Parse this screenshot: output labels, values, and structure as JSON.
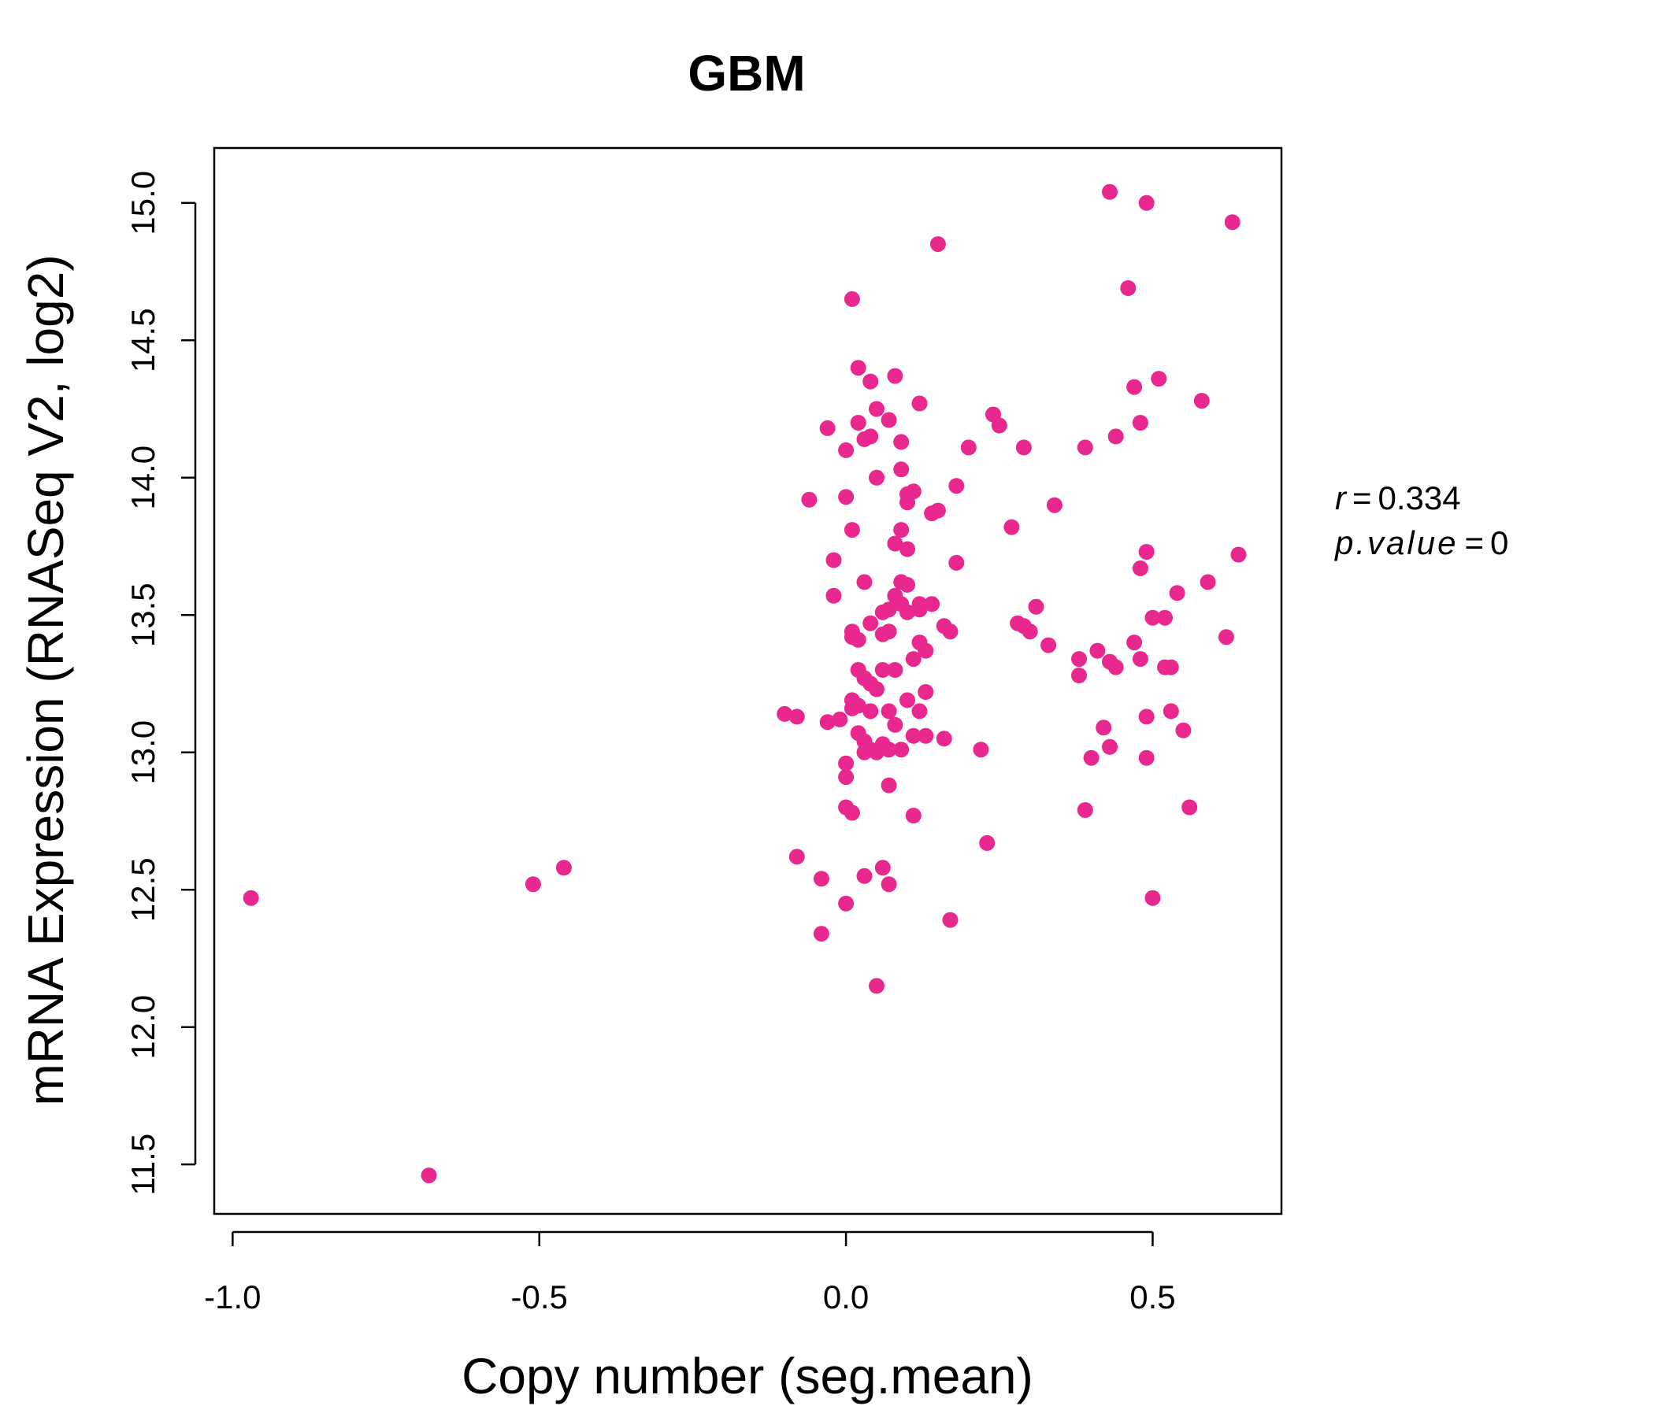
{
  "chart_data": {
    "type": "scatter",
    "title": "GBM",
    "title_color": "#E8288E",
    "point_color": "#E8288E",
    "xlabel": "Copy number (seg.mean)",
    "ylabel": "mRNA Expression (RNASeq V2, log2)",
    "xlim": [
      -1.03,
      0.71
    ],
    "ylim": [
      11.32,
      15.2
    ],
    "x_ticks": [
      -1.0,
      -0.5,
      0.0,
      0.5
    ],
    "x_tick_labels": [
      "-1.0",
      "-0.5",
      "0.0",
      "0.5"
    ],
    "y_ticks": [
      11.5,
      12.0,
      12.5,
      13.0,
      13.5,
      14.0,
      14.5,
      15.0
    ],
    "y_tick_labels": [
      "11.5",
      "12.0",
      "12.5",
      "13.0",
      "13.5",
      "14.0",
      "14.5",
      "15.0"
    ],
    "grid": false,
    "annotation": {
      "r_label": "r",
      "r_value": "0.334",
      "p_label": "p.value",
      "p_value": "0"
    },
    "points": [
      {
        "x": -0.97,
        "y": 12.47
      },
      {
        "x": -0.68,
        "y": 11.46
      },
      {
        "x": -0.51,
        "y": 12.52
      },
      {
        "x": -0.46,
        "y": 12.58
      },
      {
        "x": -0.1,
        "y": 13.14
      },
      {
        "x": -0.08,
        "y": 13.13
      },
      {
        "x": -0.08,
        "y": 12.62
      },
      {
        "x": -0.06,
        "y": 13.92
      },
      {
        "x": -0.04,
        "y": 12.54
      },
      {
        "x": -0.04,
        "y": 12.34
      },
      {
        "x": -0.03,
        "y": 13.11
      },
      {
        "x": -0.03,
        "y": 14.18
      },
      {
        "x": -0.02,
        "y": 13.7
      },
      {
        "x": -0.02,
        "y": 13.57
      },
      {
        "x": -0.01,
        "y": 13.12
      },
      {
        "x": 0.0,
        "y": 13.93
      },
      {
        "x": 0.0,
        "y": 12.96
      },
      {
        "x": 0.0,
        "y": 12.91
      },
      {
        "x": 0.0,
        "y": 12.8
      },
      {
        "x": 0.0,
        "y": 12.45
      },
      {
        "x": 0.0,
        "y": 14.1
      },
      {
        "x": 0.01,
        "y": 13.42
      },
      {
        "x": 0.01,
        "y": 13.16
      },
      {
        "x": 0.01,
        "y": 12.78
      },
      {
        "x": 0.01,
        "y": 13.81
      },
      {
        "x": 0.01,
        "y": 13.44
      },
      {
        "x": 0.01,
        "y": 13.19
      },
      {
        "x": 0.01,
        "y": 14.65
      },
      {
        "x": 0.02,
        "y": 14.4
      },
      {
        "x": 0.02,
        "y": 13.3
      },
      {
        "x": 0.02,
        "y": 13.41
      },
      {
        "x": 0.02,
        "y": 13.07
      },
      {
        "x": 0.02,
        "y": 13.17
      },
      {
        "x": 0.02,
        "y": 14.2
      },
      {
        "x": 0.03,
        "y": 14.14
      },
      {
        "x": 0.03,
        "y": 13.62
      },
      {
        "x": 0.03,
        "y": 13.04
      },
      {
        "x": 0.03,
        "y": 13.27
      },
      {
        "x": 0.03,
        "y": 12.55
      },
      {
        "x": 0.03,
        "y": 13.0
      },
      {
        "x": 0.04,
        "y": 14.35
      },
      {
        "x": 0.04,
        "y": 13.47
      },
      {
        "x": 0.04,
        "y": 13.25
      },
      {
        "x": 0.04,
        "y": 13.15
      },
      {
        "x": 0.04,
        "y": 13.01
      },
      {
        "x": 0.04,
        "y": 14.15
      },
      {
        "x": 0.05,
        "y": 14.0
      },
      {
        "x": 0.05,
        "y": 14.25
      },
      {
        "x": 0.05,
        "y": 13.23
      },
      {
        "x": 0.05,
        "y": 13.0
      },
      {
        "x": 0.05,
        "y": 12.15
      },
      {
        "x": 0.06,
        "y": 13.51
      },
      {
        "x": 0.06,
        "y": 13.43
      },
      {
        "x": 0.06,
        "y": 13.3
      },
      {
        "x": 0.06,
        "y": 13.03
      },
      {
        "x": 0.06,
        "y": 12.58
      },
      {
        "x": 0.07,
        "y": 14.21
      },
      {
        "x": 0.07,
        "y": 13.52
      },
      {
        "x": 0.07,
        "y": 13.44
      },
      {
        "x": 0.07,
        "y": 13.15
      },
      {
        "x": 0.07,
        "y": 13.01
      },
      {
        "x": 0.07,
        "y": 12.88
      },
      {
        "x": 0.07,
        "y": 12.52
      },
      {
        "x": 0.08,
        "y": 13.76
      },
      {
        "x": 0.08,
        "y": 13.57
      },
      {
        "x": 0.08,
        "y": 13.3
      },
      {
        "x": 0.08,
        "y": 14.37
      },
      {
        "x": 0.08,
        "y": 13.1
      },
      {
        "x": 0.09,
        "y": 14.13
      },
      {
        "x": 0.09,
        "y": 14.03
      },
      {
        "x": 0.09,
        "y": 13.81
      },
      {
        "x": 0.09,
        "y": 13.62
      },
      {
        "x": 0.09,
        "y": 13.54
      },
      {
        "x": 0.09,
        "y": 13.01
      },
      {
        "x": 0.1,
        "y": 13.94
      },
      {
        "x": 0.1,
        "y": 13.91
      },
      {
        "x": 0.1,
        "y": 13.74
      },
      {
        "x": 0.1,
        "y": 13.61
      },
      {
        "x": 0.1,
        "y": 13.51
      },
      {
        "x": 0.1,
        "y": 13.19
      },
      {
        "x": 0.11,
        "y": 13.34
      },
      {
        "x": 0.11,
        "y": 13.06
      },
      {
        "x": 0.11,
        "y": 12.77
      },
      {
        "x": 0.11,
        "y": 13.95
      },
      {
        "x": 0.12,
        "y": 13.54
      },
      {
        "x": 0.12,
        "y": 13.52
      },
      {
        "x": 0.12,
        "y": 13.4
      },
      {
        "x": 0.12,
        "y": 13.15
      },
      {
        "x": 0.12,
        "y": 14.27
      },
      {
        "x": 0.13,
        "y": 13.37
      },
      {
        "x": 0.13,
        "y": 13.06
      },
      {
        "x": 0.13,
        "y": 13.22
      },
      {
        "x": 0.14,
        "y": 13.54
      },
      {
        "x": 0.14,
        "y": 13.87
      },
      {
        "x": 0.15,
        "y": 14.85
      },
      {
        "x": 0.15,
        "y": 13.88
      },
      {
        "x": 0.16,
        "y": 13.05
      },
      {
        "x": 0.16,
        "y": 13.46
      },
      {
        "x": 0.17,
        "y": 13.44
      },
      {
        "x": 0.17,
        "y": 12.39
      },
      {
        "x": 0.18,
        "y": 13.97
      },
      {
        "x": 0.18,
        "y": 13.69
      },
      {
        "x": 0.2,
        "y": 14.11
      },
      {
        "x": 0.22,
        "y": 13.01
      },
      {
        "x": 0.23,
        "y": 12.67
      },
      {
        "x": 0.24,
        "y": 14.23
      },
      {
        "x": 0.25,
        "y": 14.19
      },
      {
        "x": 0.27,
        "y": 13.82
      },
      {
        "x": 0.28,
        "y": 13.47
      },
      {
        "x": 0.29,
        "y": 13.46
      },
      {
        "x": 0.29,
        "y": 14.11
      },
      {
        "x": 0.3,
        "y": 13.44
      },
      {
        "x": 0.31,
        "y": 13.53
      },
      {
        "x": 0.33,
        "y": 13.39
      },
      {
        "x": 0.34,
        "y": 13.9
      },
      {
        "x": 0.38,
        "y": 13.34
      },
      {
        "x": 0.38,
        "y": 13.28
      },
      {
        "x": 0.39,
        "y": 12.79
      },
      {
        "x": 0.39,
        "y": 14.11
      },
      {
        "x": 0.4,
        "y": 12.98
      },
      {
        "x": 0.41,
        "y": 13.37
      },
      {
        "x": 0.42,
        "y": 13.09
      },
      {
        "x": 0.43,
        "y": 13.02
      },
      {
        "x": 0.43,
        "y": 13.33
      },
      {
        "x": 0.43,
        "y": 15.04
      },
      {
        "x": 0.44,
        "y": 14.15
      },
      {
        "x": 0.44,
        "y": 13.31
      },
      {
        "x": 0.46,
        "y": 14.69
      },
      {
        "x": 0.47,
        "y": 14.33
      },
      {
        "x": 0.47,
        "y": 13.4
      },
      {
        "x": 0.48,
        "y": 13.34
      },
      {
        "x": 0.48,
        "y": 13.67
      },
      {
        "x": 0.48,
        "y": 14.2
      },
      {
        "x": 0.49,
        "y": 15.0
      },
      {
        "x": 0.49,
        "y": 13.73
      },
      {
        "x": 0.49,
        "y": 12.98
      },
      {
        "x": 0.49,
        "y": 13.13
      },
      {
        "x": 0.5,
        "y": 13.49
      },
      {
        "x": 0.5,
        "y": 12.47
      },
      {
        "x": 0.51,
        "y": 14.36
      },
      {
        "x": 0.52,
        "y": 13.31
      },
      {
        "x": 0.52,
        "y": 13.49
      },
      {
        "x": 0.53,
        "y": 13.31
      },
      {
        "x": 0.53,
        "y": 13.15
      },
      {
        "x": 0.54,
        "y": 13.58
      },
      {
        "x": 0.55,
        "y": 13.08
      },
      {
        "x": 0.56,
        "y": 12.8
      },
      {
        "x": 0.58,
        "y": 14.28
      },
      {
        "x": 0.59,
        "y": 13.62
      },
      {
        "x": 0.62,
        "y": 13.42
      },
      {
        "x": 0.63,
        "y": 14.93
      },
      {
        "x": 0.64,
        "y": 13.72
      }
    ]
  }
}
